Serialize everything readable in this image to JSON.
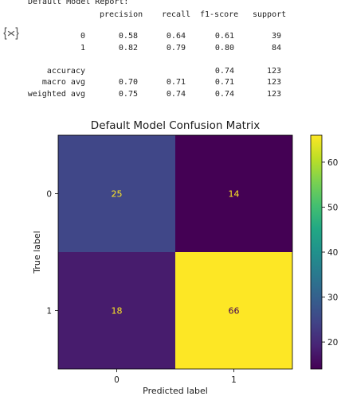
{
  "report": {
    "heading": "Default Model Report:",
    "columns": [
      "precision",
      "recall",
      "f1-score",
      "support"
    ],
    "rows": [
      {
        "label": "0",
        "precision": "0.58",
        "recall": "0.64",
        "f1": "0.61",
        "support": "39"
      },
      {
        "label": "1",
        "precision": "0.82",
        "recall": "0.79",
        "f1": "0.80",
        "support": "84"
      },
      {
        "label": "accuracy",
        "precision": "",
        "recall": "",
        "f1": "0.74",
        "support": "123"
      },
      {
        "label": "macro avg",
        "precision": "0.70",
        "recall": "0.71",
        "f1": "0.71",
        "support": "123"
      },
      {
        "label": "weighted avg",
        "precision": "0.75",
        "recall": "0.74",
        "f1": "0.74",
        "support": "123"
      }
    ]
  },
  "icons": {
    "output_toggle": "output-collapse-icon"
  },
  "chart_data": {
    "type": "heatmap",
    "title": "Default Model Confusion Matrix",
    "xlabel": "Predicted label",
    "ylabel": "True label",
    "x_categories": [
      "0",
      "1"
    ],
    "y_categories": [
      "0",
      "1"
    ],
    "values": [
      [
        25,
        14
      ],
      [
        18,
        66
      ]
    ],
    "colormap": "viridis",
    "colorbar": {
      "ticks": [
        20,
        30,
        40,
        50,
        60
      ],
      "min": 14,
      "max": 66
    },
    "cell_text_colors": {
      "dark_bg": "#fde725",
      "light_bg": "#440154"
    }
  }
}
